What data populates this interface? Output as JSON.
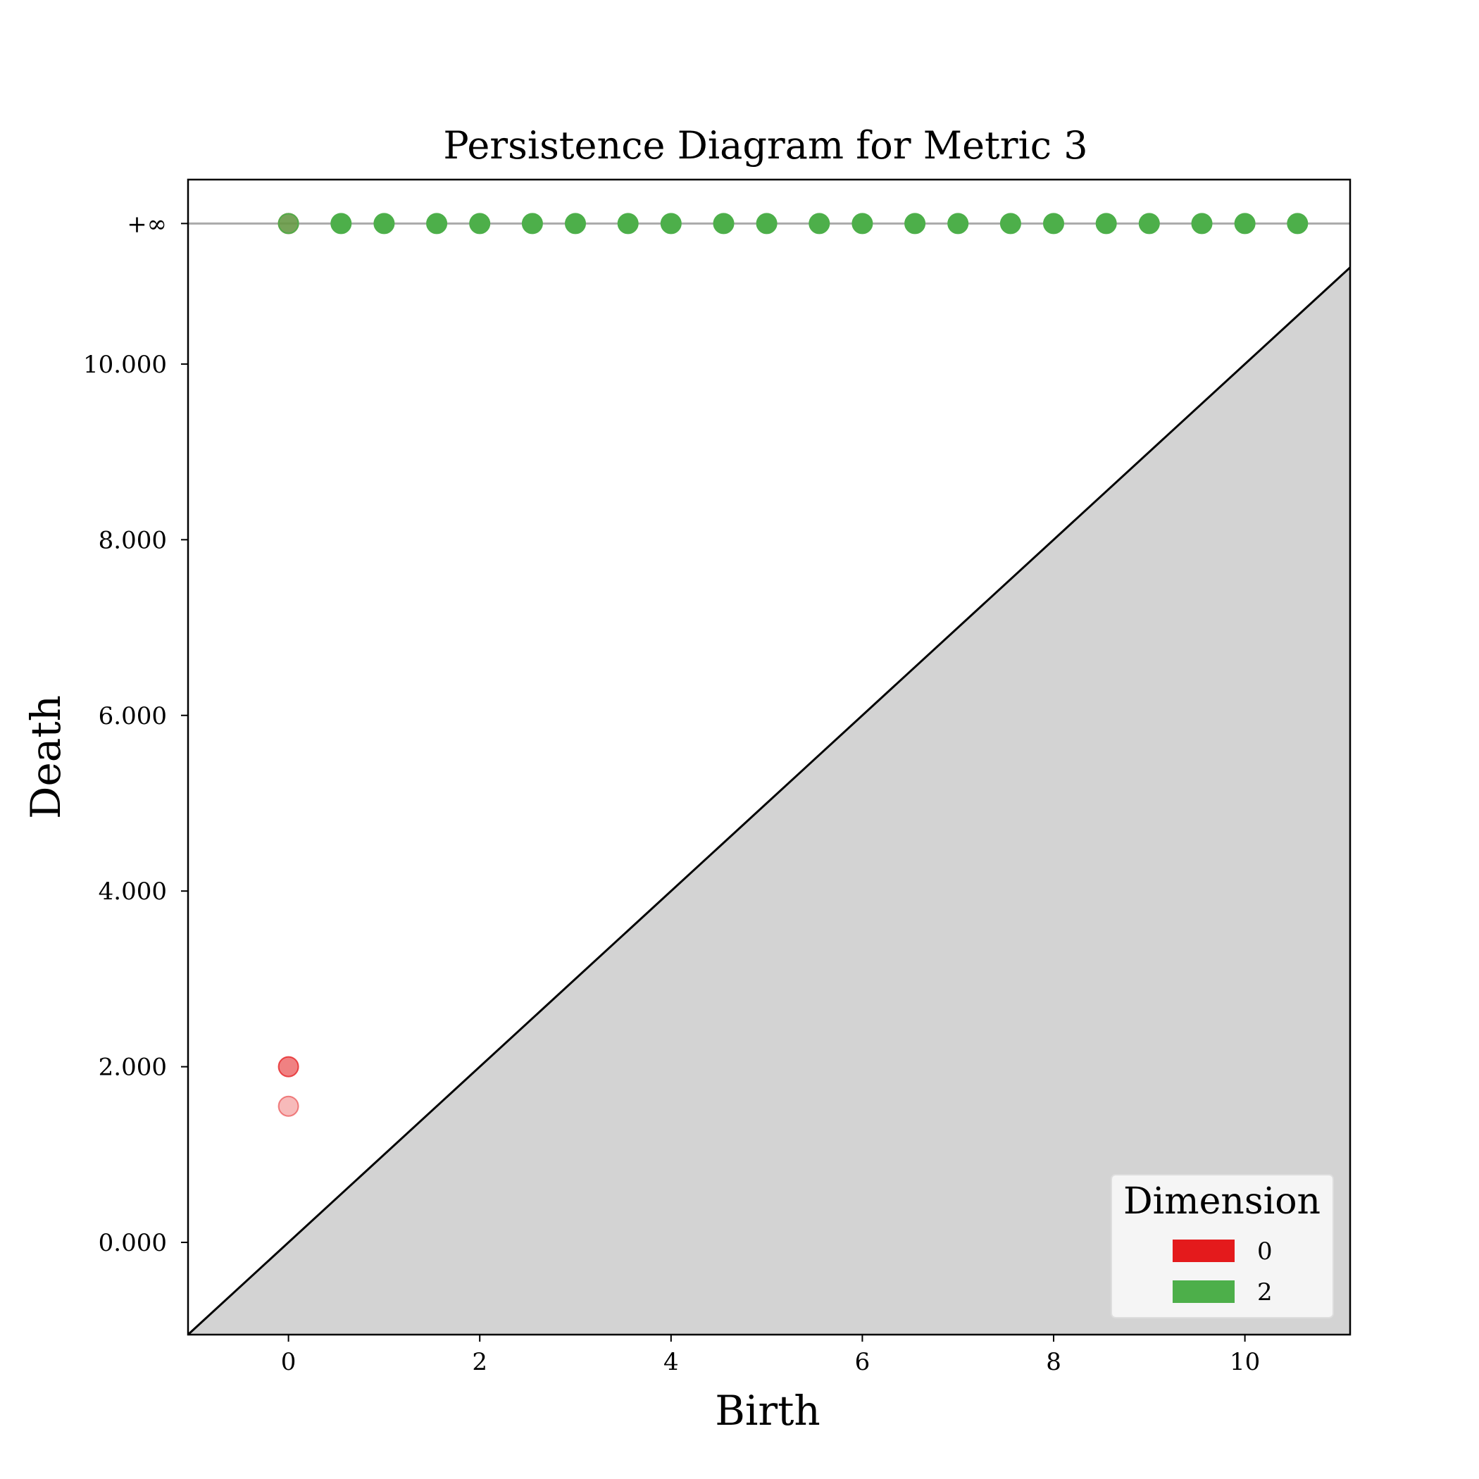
{
  "chart_data": {
    "type": "scatter",
    "title": "Persistence Diagram for Metric 3",
    "xlabel": "Birth",
    "ylabel": "Death",
    "xlim": [
      -1.05,
      11.1
    ],
    "ylim": [
      -1.05,
      12.1
    ],
    "x_ticks": [
      0,
      2,
      4,
      6,
      8,
      10
    ],
    "x_tick_labels": [
      "0",
      "2",
      "4",
      "6",
      "8",
      "10"
    ],
    "y_ticks": [
      0,
      2,
      4,
      6,
      8,
      10
    ],
    "y_tick_labels": [
      "0.000",
      "2.000",
      "4.000",
      "6.000",
      "8.000",
      "10.000"
    ],
    "infinity_value": 11.6,
    "infinity_label": "+∞",
    "legend": {
      "title": "Dimension",
      "placement": "lower-right",
      "entries": [
        {
          "label": "0",
          "color": "#e41a1c"
        },
        {
          "label": "2",
          "color": "#4daf4a"
        }
      ]
    },
    "series": [
      {
        "name": "0",
        "color": "#e41a1c",
        "points": [
          {
            "birth": 0,
            "death": 2.0
          },
          {
            "birth": 0,
            "death": 1.55
          },
          {
            "birth": 0,
            "death": "inf"
          }
        ]
      },
      {
        "name": "2",
        "color": "#4daf4a",
        "points": [
          {
            "birth": 0,
            "death": "inf"
          },
          {
            "birth": 0.55,
            "death": "inf"
          },
          {
            "birth": 1.0,
            "death": "inf"
          },
          {
            "birth": 1.55,
            "death": "inf"
          },
          {
            "birth": 2.0,
            "death": "inf"
          },
          {
            "birth": 2.55,
            "death": "inf"
          },
          {
            "birth": 3.0,
            "death": "inf"
          },
          {
            "birth": 3.55,
            "death": "inf"
          },
          {
            "birth": 4.0,
            "death": "inf"
          },
          {
            "birth": 4.55,
            "death": "inf"
          },
          {
            "birth": 5.0,
            "death": "inf"
          },
          {
            "birth": 5.55,
            "death": "inf"
          },
          {
            "birth": 6.0,
            "death": "inf"
          },
          {
            "birth": 6.55,
            "death": "inf"
          },
          {
            "birth": 7.0,
            "death": "inf"
          },
          {
            "birth": 7.55,
            "death": "inf"
          },
          {
            "birth": 8.0,
            "death": "inf"
          },
          {
            "birth": 8.55,
            "death": "inf"
          },
          {
            "birth": 9.0,
            "death": "inf"
          },
          {
            "birth": 9.55,
            "death": "inf"
          },
          {
            "birth": 10.0,
            "death": "inf"
          },
          {
            "birth": 10.55,
            "death": "inf"
          }
        ]
      }
    ]
  }
}
